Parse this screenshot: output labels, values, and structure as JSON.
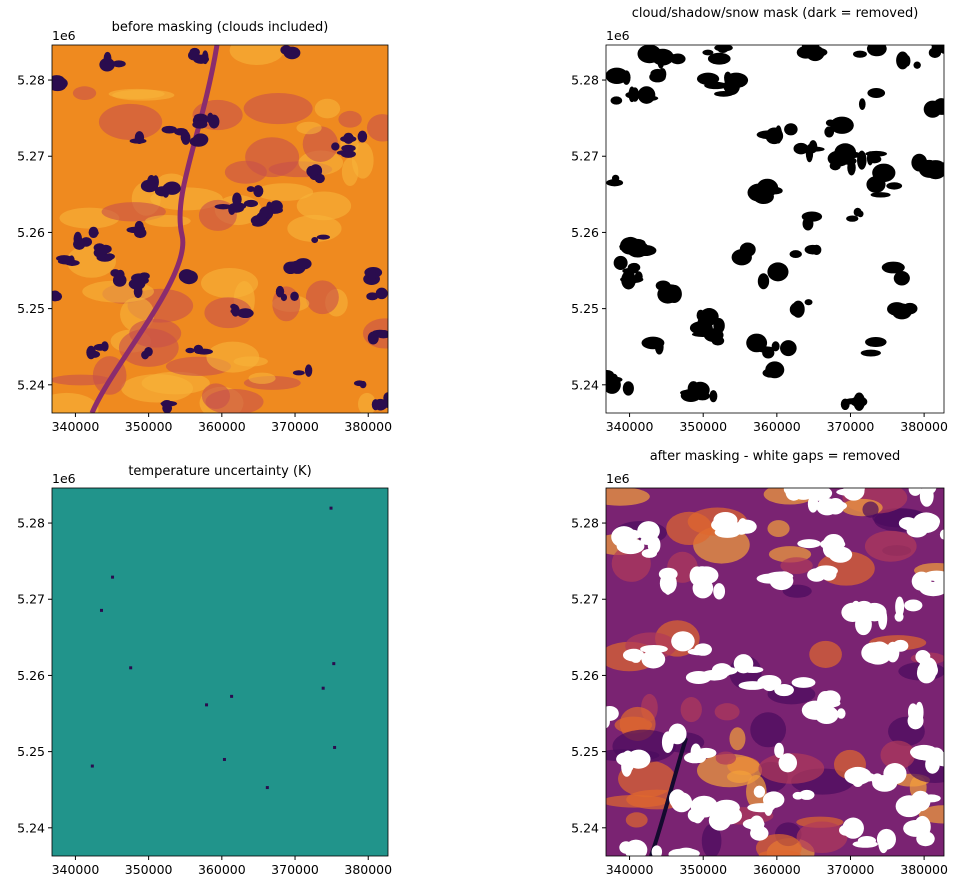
{
  "chart_data": [
    {
      "type": "image",
      "title": "before masking (clouds included)",
      "y_offset_label": "1e6",
      "xlim": [
        336800,
        382700
      ],
      "ylim": [
        5.2363,
        5.2846
      ],
      "xticks": [
        340000,
        350000,
        360000,
        370000,
        380000
      ],
      "yticks": [
        5.24,
        5.25,
        5.26,
        5.27,
        5.28
      ]
    },
    {
      "type": "image",
      "title": "cloud/shadow/snow mask (dark = removed)",
      "y_offset_label": "1e6",
      "xlim": [
        336800,
        382700
      ],
      "ylim": [
        5.2363,
        5.2846
      ],
      "xticks": [
        340000,
        350000,
        360000,
        370000,
        380000
      ],
      "yticks": [
        5.24,
        5.25,
        5.26,
        5.27,
        5.28
      ]
    },
    {
      "type": "image",
      "title": "temperature uncertainty (K)",
      "y_offset_label": "1e6",
      "xlim": [
        336800,
        382700
      ],
      "ylim": [
        5.2363,
        5.2846
      ],
      "xticks": [
        340000,
        350000,
        360000,
        370000,
        380000
      ],
      "yticks": [
        5.24,
        5.25,
        5.26,
        5.27,
        5.28
      ]
    },
    {
      "type": "image",
      "title": "after masking - white gaps = removed",
      "y_offset_label": "1e6",
      "xlim": [
        336800,
        382700
      ],
      "ylim": [
        5.2363,
        5.2846
      ],
      "xticks": [
        340000,
        350000,
        360000,
        370000,
        380000
      ],
      "yticks": [
        5.24,
        5.25,
        5.26,
        5.27,
        5.28
      ]
    }
  ]
}
